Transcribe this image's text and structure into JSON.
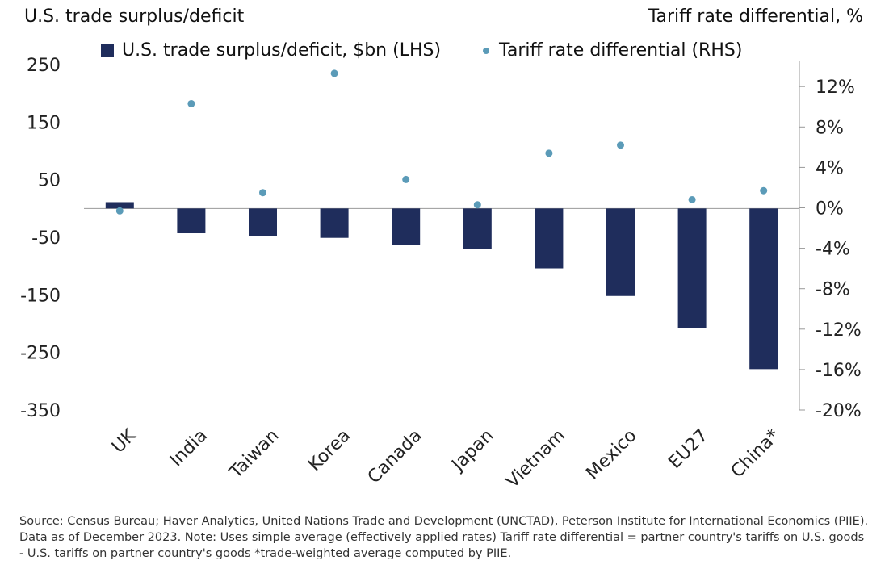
{
  "chart_data": {
    "type": "bar+scatter",
    "title_left": "U.S. trade surplus/deficit",
    "title_right": "Tariff rate differential, %",
    "categories": [
      "UK",
      "India",
      "Taiwan",
      "Korea",
      "Canada",
      "Japan",
      "Vietnam",
      "Mexico",
      "EU27",
      "China*"
    ],
    "series": [
      {
        "name": "U.S. trade surplus/deficit, $bn (LHS)",
        "kind": "bar",
        "axis": "left",
        "color": "#1f2d5c",
        "values": [
          11,
          -43,
          -48,
          -51,
          -64,
          -71,
          -104,
          -152,
          -208,
          -279
        ]
      },
      {
        "name": "Tariff rate differential (RHS)",
        "kind": "scatter",
        "axis": "right",
        "color": "#5b9bb8",
        "values": [
          -0.3,
          10.3,
          1.5,
          13.3,
          2.8,
          0.3,
          5.4,
          6.2,
          0.8,
          1.7
        ]
      }
    ],
    "left_axis": {
      "ylim": [
        -350,
        250
      ],
      "ticks": [
        250,
        150,
        50,
        -50,
        -150,
        -250,
        -350
      ],
      "tick_labels": [
        "250",
        "150",
        "50",
        "-50",
        "-150",
        "-250",
        "-350"
      ]
    },
    "right_axis": {
      "ylim": [
        -20,
        14
      ],
      "ticks": [
        12,
        8,
        4,
        0,
        -4,
        -8,
        -12,
        -16,
        -20
      ],
      "tick_labels": [
        "12%",
        "8%",
        "4%",
        "0%",
        "-4%",
        "-8%",
        "-12%",
        "-16%",
        "-20%"
      ]
    },
    "legend_position": "top"
  },
  "source_note": "Source: Census Bureau; Haver Analytics, United Nations Trade and Development (UNCTAD), Peterson Institute for International Economics (PIIE). Data as of December 2023. Note: Uses simple average (effectively applied rates) Tariff rate differential = partner country's tariffs on U.S. goods - U.S. tariffs on partner country's goods *trade-weighted average computed by PIIE."
}
